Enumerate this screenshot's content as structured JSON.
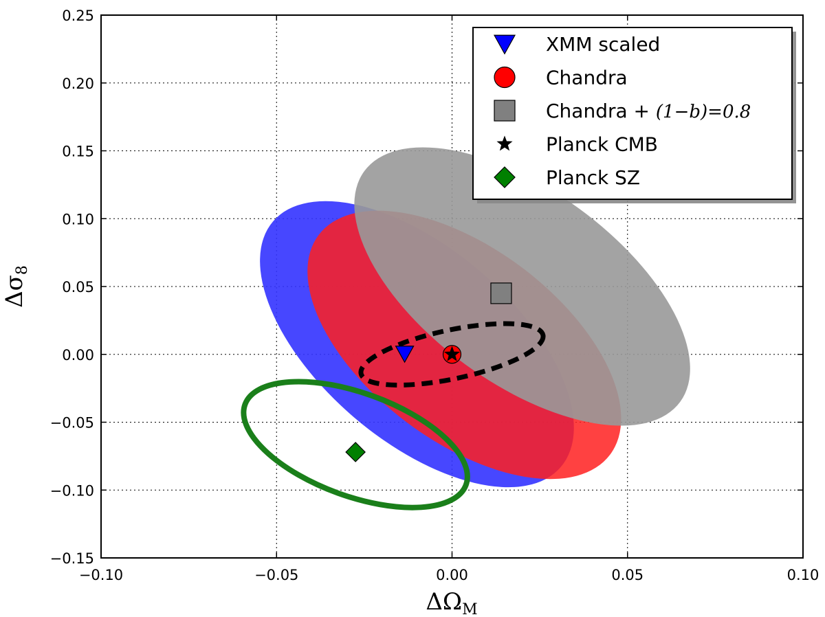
{
  "chart_data": {
    "type": "scatter",
    "xlabel": "ΔΩ",
    "xlabel_sub": "M",
    "ylabel": "Δσ",
    "ylabel_sub": "8",
    "xlim": [
      -0.1,
      0.1
    ],
    "ylim": [
      -0.15,
      0.25
    ],
    "xticks": [
      -0.1,
      -0.05,
      0.0,
      0.05,
      0.1
    ],
    "yticks": [
      -0.15,
      -0.1,
      -0.05,
      0.0,
      0.05,
      0.1,
      0.15,
      0.2,
      0.25
    ],
    "xtick_labels": [
      "−0.10",
      "−0.05",
      "0.00",
      "0.05",
      "0.10"
    ],
    "ytick_labels": [
      "−0.15",
      "−0.10",
      "−0.05",
      "0.00",
      "0.05",
      "0.10",
      "0.15",
      "0.20",
      "0.25"
    ],
    "grid": true,
    "legend_position": "top-right",
    "series": [
      {
        "name": "XMM scaled",
        "marker": "triangle-down",
        "color": "#0000ff",
        "x": -0.0135,
        "y": 0.0005
      },
      {
        "name": "Chandra",
        "marker": "circle",
        "color": "#ff0000",
        "x": 0.0,
        "y": 0.0
      },
      {
        "name": "Chandra + (1−b)=0.8",
        "legend_label": "Chandra + ",
        "legend_math": "(1−b)=0.8",
        "marker": "square",
        "color": "#808080",
        "x": 0.014,
        "y": 0.045
      },
      {
        "name": "Planck CMB",
        "marker": "star",
        "color": "#000000",
        "x": 0.0,
        "y": 0.0
      },
      {
        "name": "Planck SZ",
        "marker": "diamond",
        "color": "#008000",
        "x": -0.0275,
        "y": -0.072
      }
    ],
    "regions": [
      {
        "name": "XMM scaled contour",
        "style": "filled",
        "color": "#3333ff",
        "opacity": 0.9,
        "cx": -0.01,
        "cy": 0.008,
        "p1": [
          -0.051,
          0.098
        ],
        "p2": [
          0.031,
          -0.083
        ],
        "width": 0.0275
      },
      {
        "name": "Chandra contour",
        "style": "filled",
        "color": "#ff2020",
        "opacity": 0.85,
        "cx": 0.0,
        "cy": 0.0,
        "p1": [
          -0.038,
          0.088
        ],
        "p2": [
          0.045,
          -0.074
        ],
        "width": 0.0275
      },
      {
        "name": "Chandra (1−b)=0.8 contour",
        "style": "filled",
        "color": "#999999",
        "opacity": 0.9,
        "cx": 0.02,
        "cy": 0.05,
        "p1": [
          -0.025,
          0.135
        ],
        "p2": [
          0.065,
          -0.035
        ],
        "width": 0.0275
      },
      {
        "name": "Planck CMB contour",
        "style": "dashed",
        "color": "#000000",
        "cx": 0.0,
        "cy": 0.0,
        "rx": 0.0265,
        "ry": 0.018,
        "angle_deg": 12
      },
      {
        "name": "Planck SZ contour",
        "style": "solid",
        "color": "#1a7f1a",
        "cx": -0.0275,
        "cy": -0.0665,
        "rx": 0.0335,
        "ry": 0.038,
        "angle_deg": -20
      }
    ]
  }
}
